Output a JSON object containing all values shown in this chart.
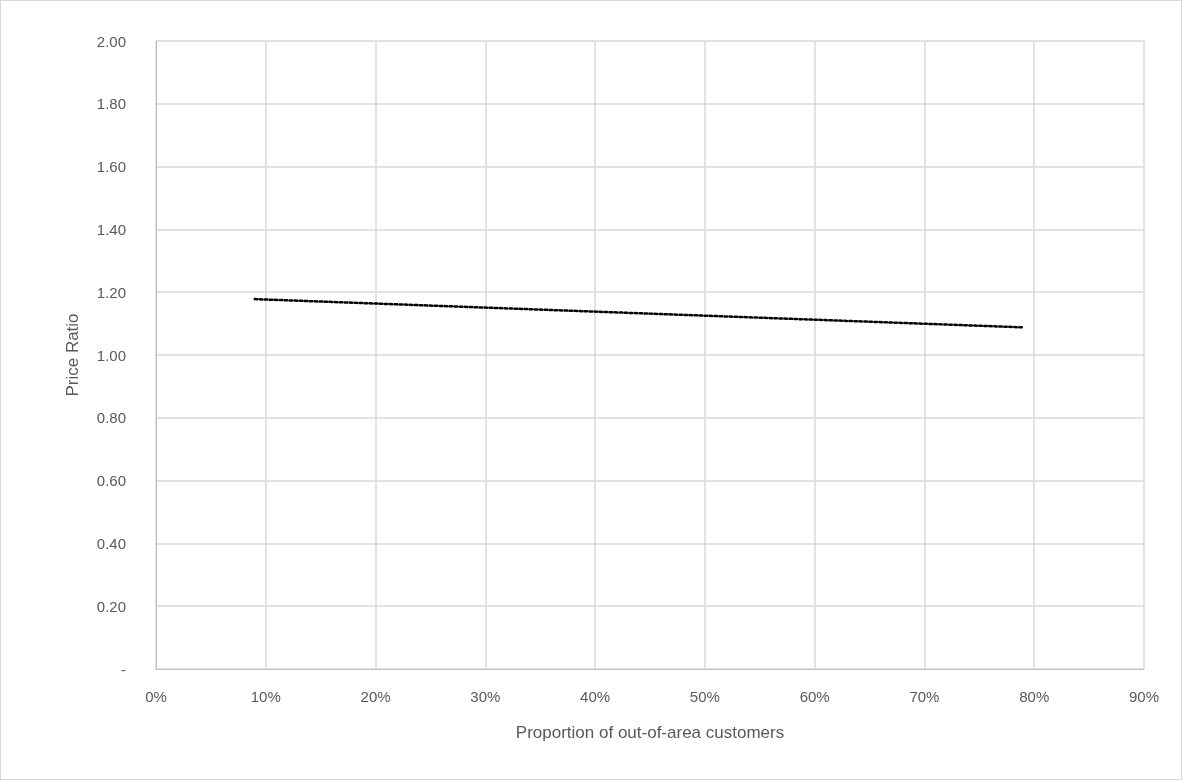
{
  "chart_data": {
    "type": "line",
    "xlabel": "Proportion of out-of-area customers",
    "ylabel": "Price Ratio",
    "x": [
      9,
      79
    ],
    "series": [
      {
        "color": "#000000",
        "values": [
          1.178,
          1.088
        ]
      }
    ],
    "xlim": [
      0,
      90
    ],
    "xticks": [
      {
        "value": 0,
        "label": "0%"
      },
      {
        "value": 10,
        "label": "10%"
      },
      {
        "value": 20,
        "label": "20%"
      },
      {
        "value": 30,
        "label": "30%"
      },
      {
        "value": 40,
        "label": "40%"
      },
      {
        "value": 50,
        "label": "50%"
      },
      {
        "value": 60,
        "label": "60%"
      },
      {
        "value": 70,
        "label": "70%"
      },
      {
        "value": 80,
        "label": "80%"
      },
      {
        "value": 90,
        "label": "90%"
      }
    ],
    "ylim": [
      0,
      2
    ],
    "yticks": [
      {
        "value": 0,
        "label": "-"
      },
      {
        "value": 0.2,
        "label": "0.20"
      },
      {
        "value": 0.4,
        "label": "0.40"
      },
      {
        "value": 0.6,
        "label": "0.60"
      },
      {
        "value": 0.8,
        "label": "0.80"
      },
      {
        "value": 1,
        "label": "1.00"
      },
      {
        "value": 1.2,
        "label": "1.20"
      },
      {
        "value": 1.4,
        "label": "1.40"
      },
      {
        "value": 1.6,
        "label": "1.60"
      },
      {
        "value": 1.8,
        "label": "1.80"
      },
      {
        "value": 2,
        "label": "2.00"
      }
    ],
    "grid": true,
    "marker": "none",
    "line_style": "dotted"
  }
}
